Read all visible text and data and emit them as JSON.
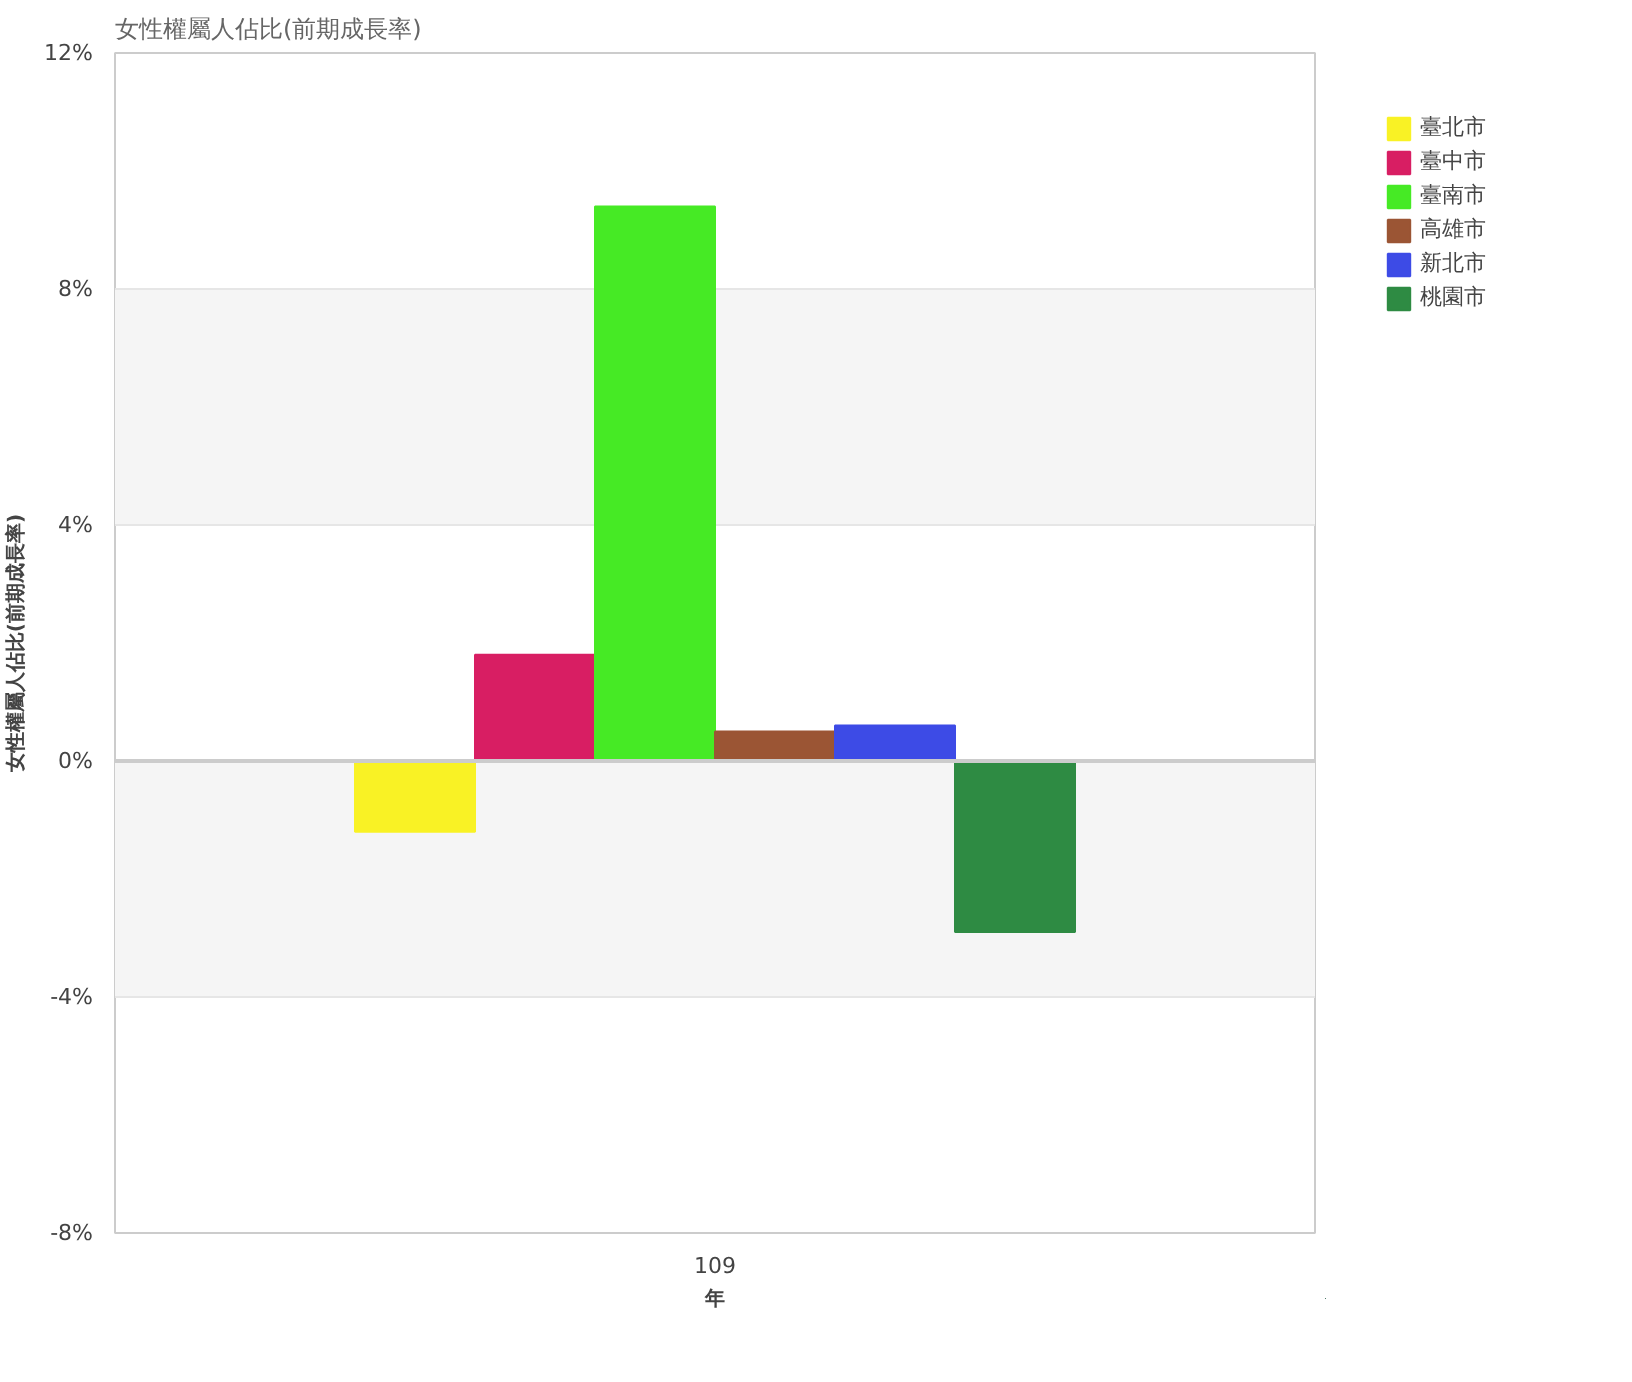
{
  "chart_data": {
    "type": "bar",
    "title": "女性權屬人佔比(前期成長率)",
    "xlabel": "年",
    "ylabel": "女性權屬人佔比(前期成長率)",
    "categories": [
      "109"
    ],
    "series": [
      {
        "name": "臺北市",
        "color": "#f9f225",
        "values": [
          -1.2
        ]
      },
      {
        "name": "臺中市",
        "color": "#d81e63",
        "values": [
          1.8
        ]
      },
      {
        "name": "臺南市",
        "color": "#46ea25",
        "values": [
          9.4
        ]
      },
      {
        "name": "高雄市",
        "color": "#9b5534",
        "values": [
          0.5
        ]
      },
      {
        "name": "新北市",
        "color": "#3d4be6",
        "values": [
          0.6
        ]
      },
      {
        "name": "桃園市",
        "color": "#2e8b43",
        "values": [
          -2.9
        ]
      }
    ],
    "ylim": [
      -8,
      12
    ],
    "yticks": [
      {
        "value": -8,
        "label": "-8%"
      },
      {
        "value": -4,
        "label": "-4%"
      },
      {
        "value": 0,
        "label": "0%"
      },
      {
        "value": 4,
        "label": "4%"
      },
      {
        "value": 8,
        "label": "8%"
      },
      {
        "value": 12,
        "label": "12%"
      }
    ],
    "grid": "y",
    "legend": "right"
  }
}
